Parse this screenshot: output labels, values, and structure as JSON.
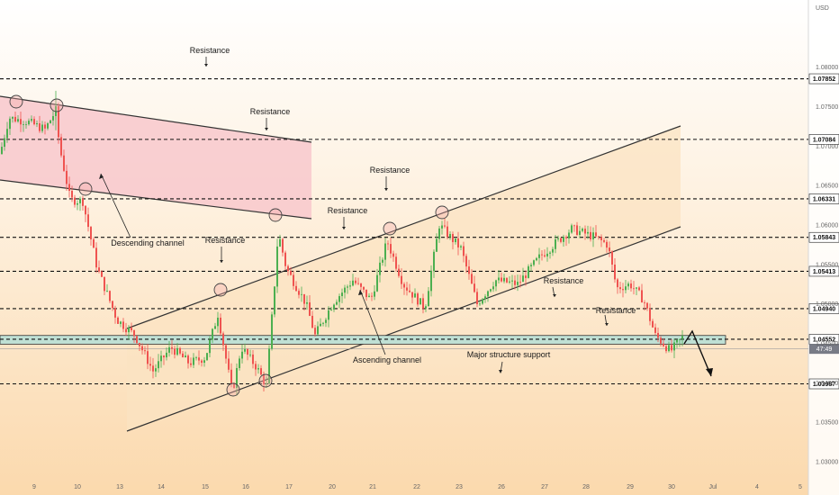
{
  "chart_data": {
    "type": "candlestick",
    "currency": "USD",
    "x_ticks": [
      "9",
      "10",
      "13",
      "14",
      "15",
      "16",
      "17",
      "20",
      "21",
      "22",
      "23",
      "26",
      "27",
      "28",
      "29",
      "30",
      "Jul",
      "4",
      "5"
    ],
    "y_ticks": [
      "1.08000",
      "1.07500",
      "1.07000",
      "1.06500",
      "1.06000",
      "1.05500",
      "1.05000",
      "1.04500",
      "1.04000",
      "1.03500",
      "1.03000"
    ],
    "ylim": [
      1.0275,
      1.0885
    ],
    "levels": [
      {
        "label": "1.07852",
        "value": 1.07852
      },
      {
        "label": "1.07084",
        "value": 1.07084
      },
      {
        "label": "1.06331",
        "value": 1.06331
      },
      {
        "label": "1.05843",
        "value": 1.05843
      },
      {
        "label": "1.05413",
        "value": 1.05413
      },
      {
        "label": "1.04940",
        "value": 1.0494
      },
      {
        "label": "1.04552",
        "value": 1.04552
      },
      {
        "label": "1.03987",
        "value": 1.03987
      }
    ],
    "current_price": {
      "label": "47:49",
      "value": 1.0443
    },
    "annotations": [
      {
        "text": "Resistance"
      },
      {
        "text": "Resistance"
      },
      {
        "text": "Resistance"
      },
      {
        "text": "Resistance"
      },
      {
        "text": "Resistance"
      },
      {
        "text": "Resistance"
      },
      {
        "text": "Resistance"
      },
      {
        "text": "Descending channel"
      },
      {
        "text": "Ascending channel"
      },
      {
        "text": "Major structure support"
      }
    ],
    "colors": {
      "up": "#4caf50",
      "down": "#ef5350",
      "ascending_channel": "#fbe3c2",
      "descending_channel": "#f8c8cc",
      "support_zone": "#bfe0d4",
      "level_line": "#111111"
    }
  }
}
